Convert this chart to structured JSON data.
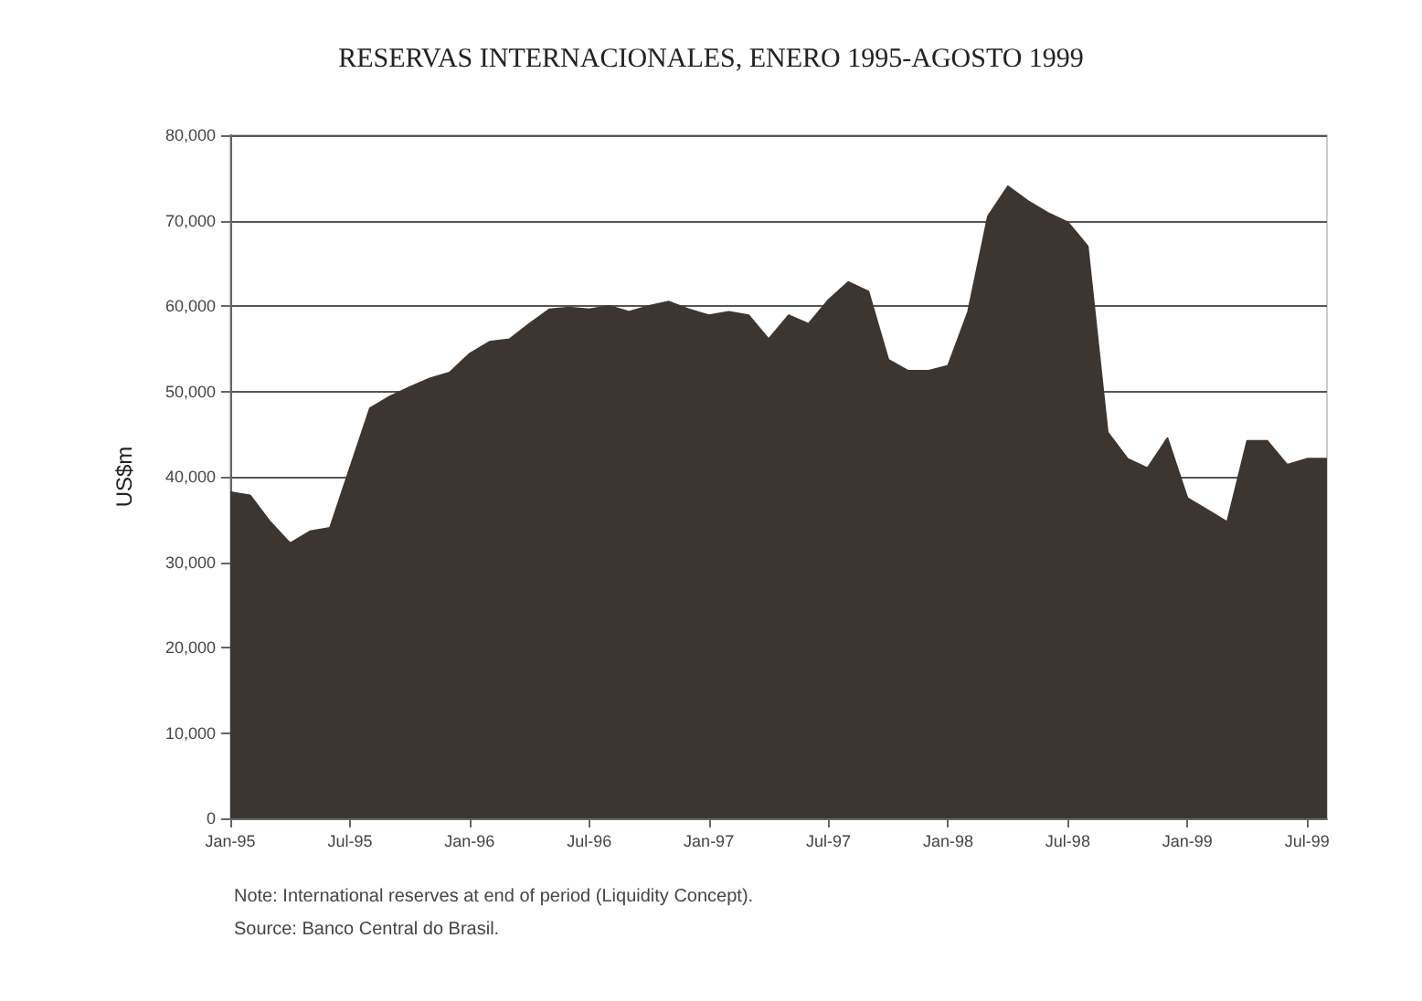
{
  "chart_data": {
    "type": "area",
    "title": "RESERVAS INTERNACIONALES, ENERO 1995-AGOSTO 1999",
    "ylabel": "US$m",
    "categories": [
      "Jan-95",
      null,
      null,
      null,
      null,
      null,
      "Jul-95",
      null,
      null,
      null,
      null,
      null,
      "Jan-96",
      null,
      null,
      null,
      null,
      null,
      "Jul-96",
      null,
      null,
      null,
      null,
      null,
      "Jan-97",
      null,
      null,
      null,
      null,
      null,
      "Jul-97",
      null,
      null,
      null,
      null,
      null,
      "Jan-98",
      null,
      null,
      null,
      null,
      null,
      "Jul-98",
      null,
      null,
      null,
      null,
      null,
      "Jan-99",
      null,
      null,
      null,
      null,
      null,
      "Jul-99",
      null
    ],
    "series": [
      {
        "color": "#3d3630",
        "values": [
          38200,
          37800,
          34700,
          32200,
          33600,
          34000,
          41000,
          48000,
          49400,
          50500,
          51500,
          52200,
          54400,
          55800,
          56100,
          57900,
          59600,
          59800,
          59600,
          60000,
          59300,
          60000,
          60500,
          59600,
          58900,
          59300,
          58900,
          56100,
          58900,
          57900,
          60700,
          62800,
          61700,
          53700,
          52400,
          52400,
          53000,
          59300,
          70500,
          74000,
          72300,
          70900,
          69800,
          67000,
          45200,
          42100,
          41000,
          44500,
          37500,
          36100,
          34700,
          44200,
          44200,
          41400,
          42100,
          42100
        ]
      }
    ],
    "ylim": [
      0,
      80000
    ],
    "yticks": [
      {
        "value": 0,
        "label": "0"
      },
      {
        "value": 10000,
        "label": "10,000"
      },
      {
        "value": 20000,
        "label": "20,000"
      },
      {
        "value": 30000,
        "label": "30,000"
      },
      {
        "value": 40000,
        "label": "40,000"
      },
      {
        "value": 50000,
        "label": "50,000"
      },
      {
        "value": 60000,
        "label": "60,000"
      },
      {
        "value": 70000,
        "label": "70,000"
      },
      {
        "value": 80000,
        "label": "80,000"
      }
    ],
    "grid": "y",
    "annotations": [
      "Note: International reserves at end of period (Liquidity Concept).",
      "Source: Banco Central do Brasil."
    ]
  }
}
